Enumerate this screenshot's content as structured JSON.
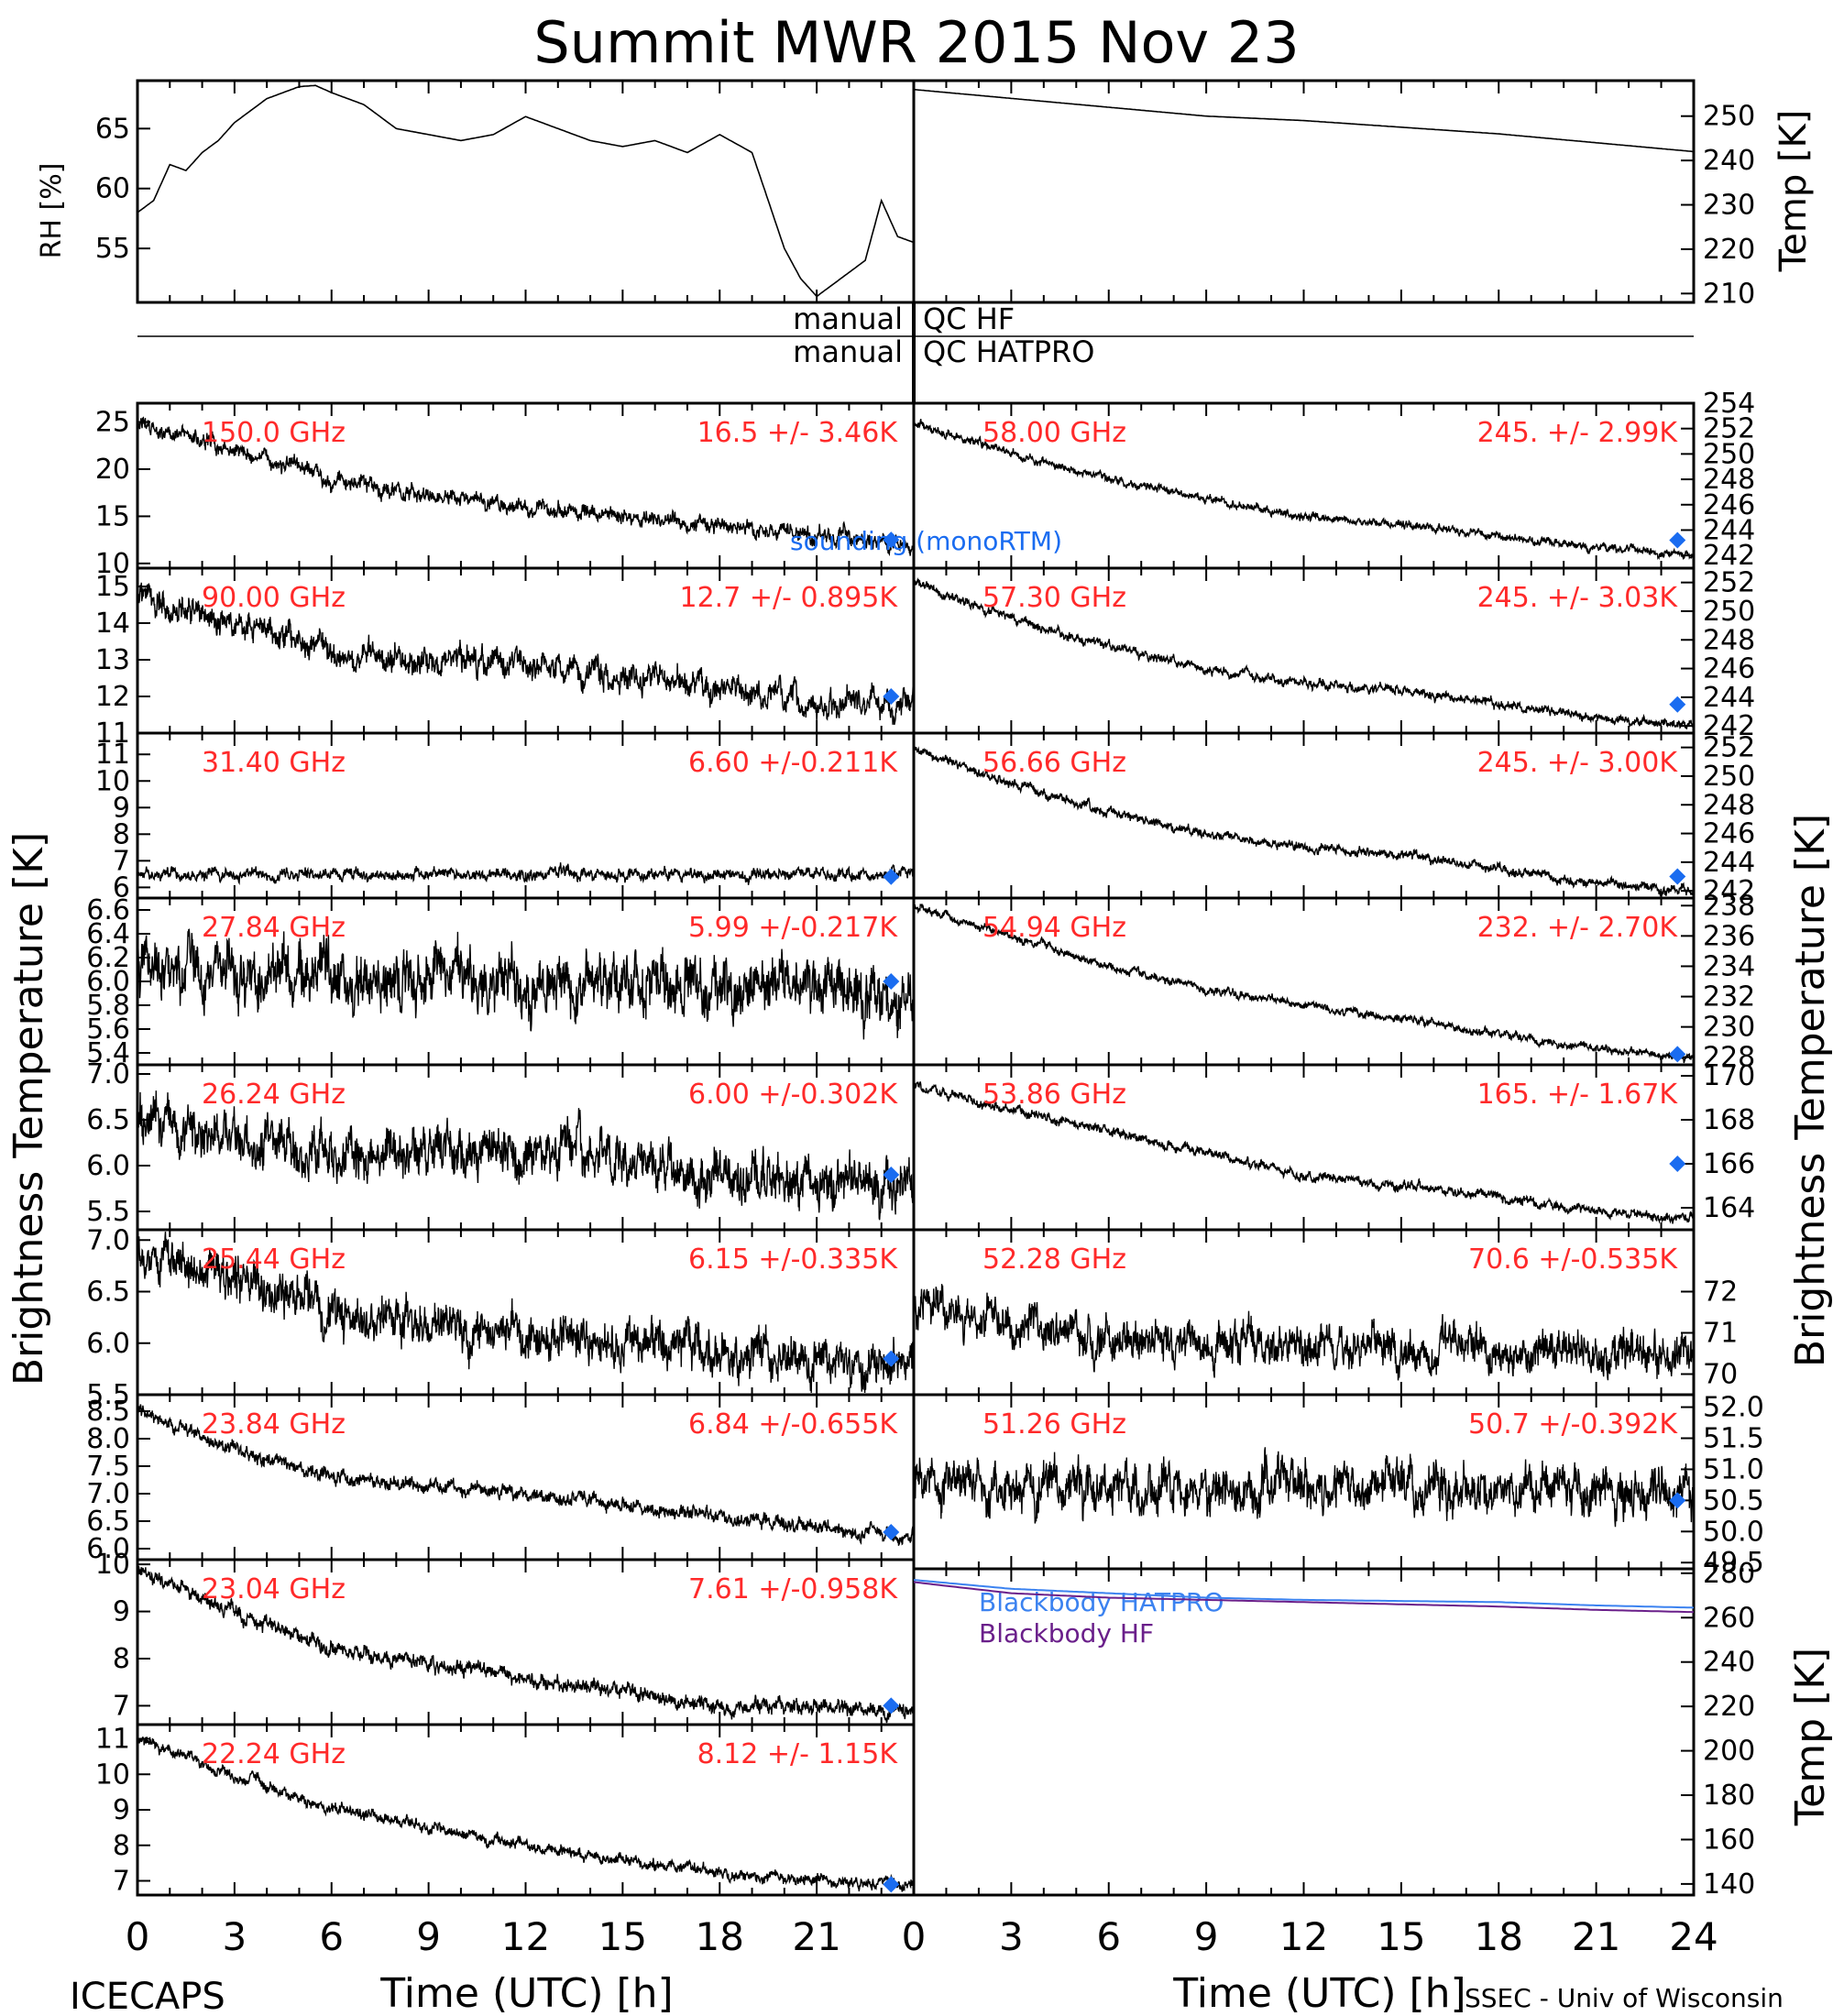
{
  "title": "Summit MWR 2015 Nov 23",
  "footer_left": "ICECAPS",
  "footer_right": "SSEC - Univ of Wisconsin",
  "xlabel": "Time (UTC) [h]",
  "left_ylabel": "Brightness Temperature [K]",
  "right_ylabel": "Brightness Temperature [K]",
  "qc_labels": [
    "manual QC HF",
    "manual QC HATPRO"
  ],
  "legend_model": "sounding (monoRTM)",
  "colors": {
    "trace": "#000000",
    "label": "#ff2a2a",
    "model": "#1a6cf0",
    "bb_hatpro": "#3b82f0",
    "bb_hf": "#6a1f8a"
  },
  "chart_data": [
    {
      "type": "line",
      "panel": "rh",
      "ylabel": "RH [%]",
      "yticks": [
        55,
        60,
        65
      ],
      "ylim": [
        50.5,
        69
      ],
      "x": [
        0,
        0.5,
        1,
        1.5,
        2,
        2.5,
        3,
        3.5,
        4,
        4.5,
        5,
        5.5,
        6,
        7,
        8,
        9,
        10,
        11,
        12,
        13,
        14,
        15,
        16,
        17,
        18,
        19,
        20,
        20.5,
        21,
        21.5,
        22,
        22.5,
        23,
        23.5,
        24
      ],
      "y": [
        58,
        59,
        62,
        61.5,
        63,
        64,
        65.5,
        66.5,
        67.5,
        68,
        68.5,
        68.6,
        68,
        67,
        65,
        64.5,
        64,
        64.5,
        66,
        65,
        64,
        63.5,
        64,
        63,
        64.5,
        63,
        55,
        52.5,
        51,
        52,
        53,
        54,
        59,
        56,
        55.5
      ]
    },
    {
      "type": "line",
      "panel": "temp",
      "ylabel": "Temp [K]",
      "yticks": [
        210,
        220,
        230,
        240,
        250
      ],
      "ylim": [
        208,
        258
      ],
      "x": [
        0,
        3,
        6,
        9,
        12,
        15,
        18,
        21,
        24
      ],
      "y": [
        256,
        254,
        252,
        250,
        249,
        247.5,
        246,
        244,
        242
      ]
    },
    {
      "type": "line",
      "panel": "L1",
      "label": "150.0 GHz",
      "stats": "16.5 +/-  3.46K",
      "yticks": [
        10,
        15,
        20,
        25
      ],
      "ylim": [
        9.5,
        27
      ],
      "x": [
        0,
        3,
        6,
        9,
        12,
        15,
        18,
        21,
        24
      ],
      "y": [
        25,
        22,
        19,
        17,
        16,
        15,
        14,
        13,
        12
      ],
      "noise": 0.8,
      "model": 12.5
    },
    {
      "type": "line",
      "panel": "L2",
      "label": "90.00 GHz",
      "stats": "12.7 +/- 0.895K",
      "yticks": [
        11,
        12,
        13,
        14,
        15
      ],
      "ylim": [
        11,
        15.5
      ],
      "x": [
        0,
        3,
        6,
        9,
        12,
        15,
        18,
        21,
        24
      ],
      "y": [
        14.7,
        14,
        13.3,
        12.9,
        12.9,
        12.6,
        12.2,
        11.8,
        11.8
      ],
      "noise": 0.35,
      "model": 12
    },
    {
      "type": "line",
      "panel": "L3",
      "label": "31.40 GHz",
      "stats": "6.60 +/-0.211K",
      "yticks": [
        6,
        7,
        8,
        9,
        10,
        11
      ],
      "ylim": [
        5.6,
        11.8
      ],
      "x": [
        0,
        24
      ],
      "y": [
        6.5,
        6.5
      ],
      "noise": 0.2,
      "model": 6.4
    },
    {
      "type": "line",
      "panel": "L4",
      "label": "27.84 GHz",
      "stats": "5.99 +/-0.217K",
      "yticks": [
        5.4,
        5.6,
        5.8,
        6.0,
        6.2,
        6.4,
        6.6
      ],
      "ylim": [
        5.3,
        6.7
      ],
      "x": [
        0,
        24
      ],
      "y": [
        6.1,
        5.9
      ],
      "noise": 0.22,
      "model": 6.0
    },
    {
      "type": "line",
      "panel": "L5",
      "label": "26.24 GHz",
      "stats": "6.00 +/-0.302K",
      "yticks": [
        5.5,
        6.0,
        6.5,
        7.0
      ],
      "ylim": [
        5.3,
        7.1
      ],
      "x": [
        0,
        3,
        6,
        12,
        18,
        24
      ],
      "y": [
        6.5,
        6.3,
        6.1,
        6.2,
        5.9,
        5.8
      ],
      "noise": 0.25,
      "model": 5.9
    },
    {
      "type": "line",
      "panel": "L6",
      "label": "25.44 GHz",
      "stats": "6.15 +/-0.335K",
      "yticks": [
        5.5,
        6.0,
        6.5,
        7.0
      ],
      "ylim": [
        5.5,
        7.1
      ],
      "x": [
        0,
        3,
        6,
        12,
        18,
        24
      ],
      "y": [
        6.9,
        6.6,
        6.3,
        6.1,
        5.9,
        5.8
      ],
      "noise": 0.2,
      "model": 5.85
    },
    {
      "type": "line",
      "panel": "L7",
      "label": "23.84 GHz",
      "stats": "6.84 +/-0.655K",
      "yticks": [
        6.0,
        6.5,
        7.0,
        7.5,
        8.0,
        8.5
      ],
      "ylim": [
        5.8,
        8.8
      ],
      "x": [
        0,
        3,
        6,
        12,
        18,
        24
      ],
      "y": [
        8.5,
        7.8,
        7.3,
        7.0,
        6.6,
        6.2
      ],
      "noise": 0.12,
      "model": 6.3
    },
    {
      "type": "line",
      "panel": "L8",
      "label": "23.04 GHz",
      "stats": "7.61 +/-0.958K",
      "yticks": [
        7,
        8,
        9,
        10
      ],
      "ylim": [
        6.6,
        10.1
      ],
      "x": [
        0,
        3,
        6,
        12,
        18,
        24
      ],
      "y": [
        9.9,
        9.0,
        8.2,
        7.6,
        7.0,
        6.9
      ],
      "noise": 0.15,
      "model": 7.0
    },
    {
      "type": "line",
      "panel": "L9",
      "label": "22.24 GHz",
      "stats": "8.12 +/- 1.15K",
      "yticks": [
        7,
        8,
        9,
        10,
        11
      ],
      "ylim": [
        6.6,
        11.4
      ],
      "x": [
        0,
        3,
        6,
        12,
        18,
        24
      ],
      "y": [
        11,
        10,
        9.0,
        8.0,
        7.2,
        6.9
      ],
      "noise": 0.15,
      "model": 6.9
    },
    {
      "type": "line",
      "panel": "R1",
      "label": "58.00 GHz",
      "stats": "245. +/- 2.99K",
      "yticks": [
        242,
        244,
        246,
        248,
        250,
        252,
        254
      ],
      "ylim": [
        241,
        254
      ],
      "x": [
        0,
        3,
        6,
        9,
        12,
        15,
        18,
        21,
        24
      ],
      "y": [
        252.5,
        250,
        248,
        246.5,
        245,
        244.5,
        243.5,
        242.5,
        242
      ],
      "noise": 0.3,
      "model": 243.2
    },
    {
      "type": "line",
      "panel": "R2",
      "label": "57.30 GHz",
      "stats": "245. +/- 3.03K",
      "yticks": [
        242,
        244,
        246,
        248,
        250,
        252
      ],
      "ylim": [
        241.5,
        253
      ],
      "x": [
        0,
        3,
        6,
        9,
        12,
        15,
        18,
        21,
        24
      ],
      "y": [
        252,
        249.5,
        247.5,
        246,
        245,
        244.5,
        243.5,
        242.5,
        242
      ],
      "noise": 0.3,
      "model": 243.5
    },
    {
      "type": "line",
      "panel": "R3",
      "label": "56.66 GHz",
      "stats": "245. +/- 3.00K",
      "yticks": [
        242,
        244,
        246,
        248,
        250,
        252
      ],
      "ylim": [
        241.5,
        253
      ],
      "x": [
        0,
        3,
        6,
        9,
        12,
        15,
        18,
        21,
        24
      ],
      "y": [
        252,
        249.5,
        247.5,
        246,
        245,
        244.5,
        243.5,
        242.5,
        242
      ],
      "noise": 0.3,
      "model": 243
    },
    {
      "type": "line",
      "panel": "R4",
      "label": "54.94 GHz",
      "stats": "232. +/- 2.70K",
      "yticks": [
        228,
        230,
        232,
        234,
        236,
        238
      ],
      "ylim": [
        227.5,
        238.5
      ],
      "x": [
        0,
        3,
        6,
        9,
        12,
        15,
        18,
        21,
        24
      ],
      "y": [
        238,
        236,
        234,
        232.5,
        231.5,
        230.5,
        229.5,
        228.5,
        228
      ],
      "noise": 0.25,
      "model": 228.2
    },
    {
      "type": "line",
      "panel": "R5",
      "label": "53.86 GHz",
      "stats": "165. +/- 1.67K",
      "yticks": [
        164,
        166,
        168,
        170
      ],
      "ylim": [
        163,
        170.5
      ],
      "x": [
        0,
        3,
        6,
        9,
        12,
        15,
        18,
        21,
        24
      ],
      "y": [
        169.5,
        168.5,
        167.5,
        166.5,
        165.5,
        165,
        164.5,
        163.8,
        163.5
      ],
      "noise": 0.2,
      "model": 166
    },
    {
      "type": "line",
      "panel": "R6",
      "label": "52.28 GHz",
      "stats": "70.6 +/-0.535K",
      "yticks": [
        70,
        71,
        72
      ],
      "ylim": [
        69.5,
        73.5
      ],
      "x": [
        0,
        3,
        6,
        12,
        24
      ],
      "y": [
        71.8,
        71.2,
        70.8,
        70.7,
        70.5
      ],
      "noise": 0.45,
      "model": null
    },
    {
      "type": "line",
      "panel": "R7",
      "label": "51.26 GHz",
      "stats": "50.7 +/-0.392K",
      "yticks": [
        49.5,
        50.0,
        50.5,
        51.0,
        51.5,
        52.0
      ],
      "ylim": [
        49.4,
        52.2
      ],
      "x": [
        0,
        24
      ],
      "y": [
        50.8,
        50.6
      ],
      "noise": 0.35,
      "model": 50.5
    },
    {
      "type": "line",
      "panel": "bb",
      "ylabel": "Temp [K]",
      "yticks": [
        140,
        160,
        180,
        200,
        220,
        240,
        260,
        280
      ],
      "ylim": [
        135,
        282
      ],
      "series": [
        {
          "name": "Blackbody HATPRO",
          "x": [
            0,
            3,
            6,
            9,
            12,
            15,
            18,
            21,
            24
          ],
          "y": [
            277,
            273,
            271,
            269,
            268,
            267.5,
            267,
            265.5,
            264.5
          ]
        },
        {
          "name": "Blackbody HF",
          "x": [
            0,
            3,
            6,
            9,
            12,
            15,
            18,
            21,
            24
          ],
          "y": [
            276,
            271,
            269,
            268,
            267,
            266,
            265,
            263.5,
            262.5
          ]
        }
      ]
    }
  ],
  "xticks_left": [
    "0",
    "3",
    "6",
    "9",
    "12",
    "15",
    "18",
    "21"
  ],
  "xticks_right": [
    "0",
    "3",
    "6",
    "9",
    "12",
    "15",
    "18",
    "21",
    "24"
  ]
}
